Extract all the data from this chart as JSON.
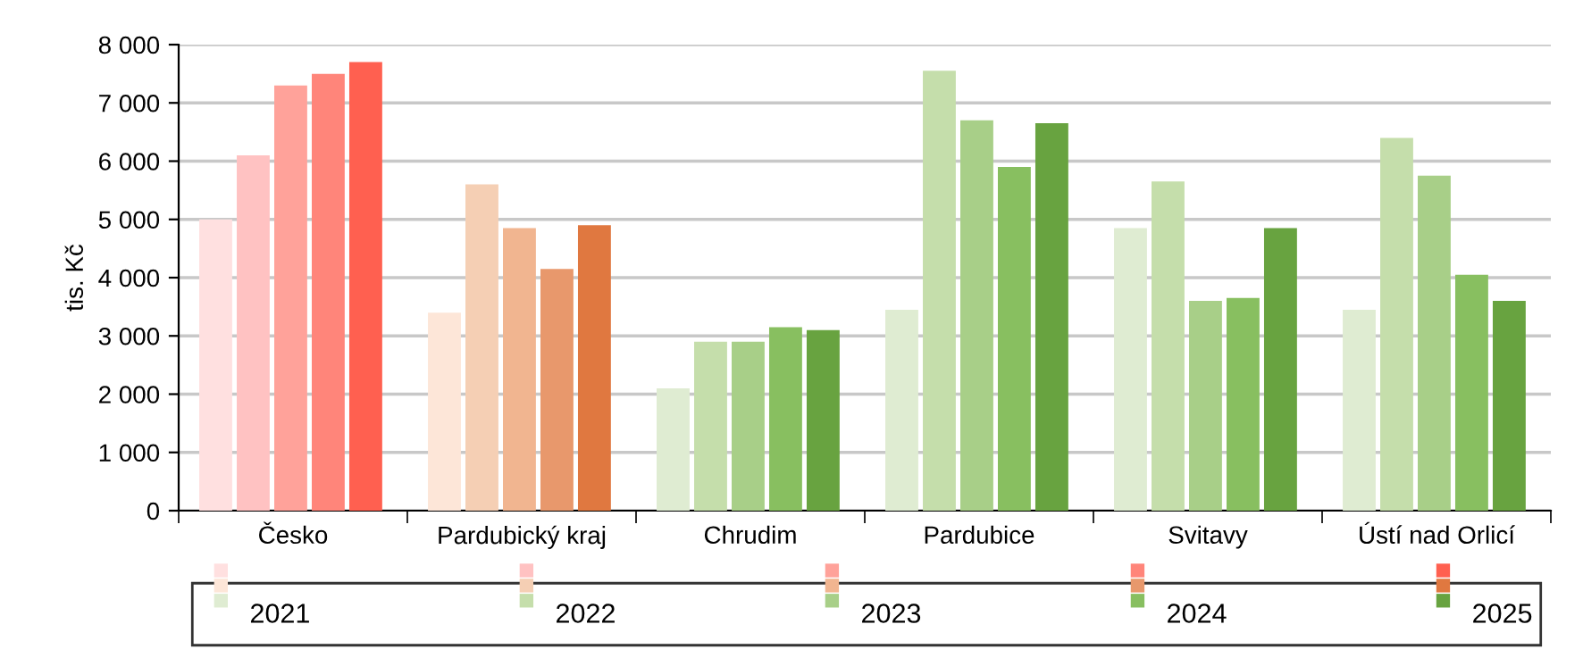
{
  "chart_data": {
    "type": "bar",
    "ylabel": "tis. Kč",
    "categories": [
      "Česko",
      "Pardubický kraj",
      "Chrudim",
      "Pardubice",
      "Svitavy",
      "Ústí nad Orlicí"
    ],
    "series": [
      {
        "name": "2021",
        "colors": [
          "#ffe0e0",
          "#fde6d8",
          "#dfecd2",
          "#dfecd2",
          "#dfecd2",
          "#dfecd2"
        ],
        "values": [
          5000,
          3400,
          2100,
          3450,
          4850,
          3450
        ]
      },
      {
        "name": "2022",
        "colors": [
          "#ffc2c2",
          "#f5cfb4",
          "#c5deab",
          "#c5deab",
          "#c5deab",
          "#c5deab"
        ],
        "values": [
          6100,
          5600,
          2900,
          7550,
          5650,
          6400
        ]
      },
      {
        "name": "2023",
        "colors": [
          "#ffa29a",
          "#f1b590",
          "#a8cf88",
          "#a8cf88",
          "#a8cf88",
          "#a8cf88"
        ],
        "values": [
          7300,
          4850,
          2900,
          6700,
          3600,
          5750
        ]
      },
      {
        "name": "2024",
        "colors": [
          "#ff857a",
          "#e8986c",
          "#88bf60",
          "#88bf60",
          "#88bf60",
          "#88bf60"
        ],
        "values": [
          7500,
          4150,
          3150,
          5900,
          3650,
          4050
        ]
      },
      {
        "name": "2025",
        "colors": [
          "#ff6050",
          "#e07840",
          "#68a340",
          "#68a340",
          "#68a340",
          "#68a340"
        ],
        "values": [
          7700,
          4900,
          3100,
          6650,
          4850,
          3600
        ]
      }
    ],
    "ylim": [
      0,
      8000
    ],
    "yticks": [
      0,
      {
        "value": 1000,
        "label": "1 000"
      },
      {
        "value": 2000,
        "label": "2 000"
      },
      {
        "value": 3000,
        "label": "3 000"
      },
      {
        "value": 4000,
        "label": "4 000"
      },
      {
        "value": 5000,
        "label": "5 000"
      },
      {
        "value": 6000,
        "label": "6 000"
      },
      {
        "value": 7000,
        "label": "7 000"
      },
      {
        "value": 8000,
        "label": "8 000"
      }
    ],
    "grid": "y",
    "legend": "bottom"
  }
}
